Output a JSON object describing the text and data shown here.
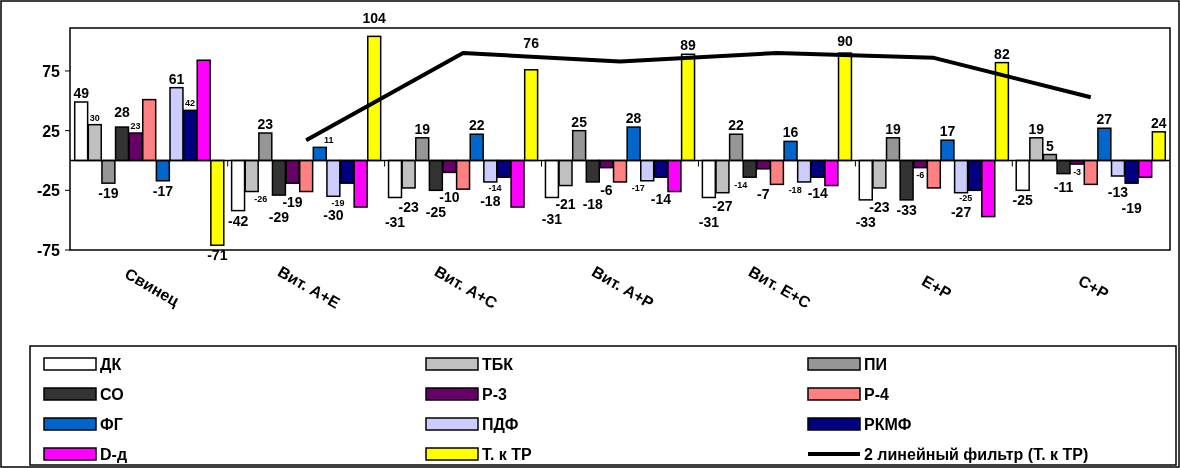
{
  "chart_data": {
    "type": "bar",
    "categories": [
      "Свинец",
      "Вит. А+Е",
      "Вит. А+С",
      "Вит. А+Р",
      "Вит. Е+С",
      "Е+Р",
      "С+Р"
    ],
    "ylim": [
      -75,
      111
    ],
    "yticks": [
      -75,
      -25,
      25,
      75
    ],
    "grid": false,
    "legend": "bottom",
    "series": [
      {
        "name": "ДК",
        "color": "#ffffff",
        "values": [
          49,
          -42,
          -31,
          -31,
          -31,
          -33,
          -25
        ],
        "value_labels": [
          "49",
          "-42",
          "-31",
          "-31",
          "-31",
          "-33",
          "-25"
        ]
      },
      {
        "name": "ТБК",
        "color": "#c0c0c0",
        "values": [
          30,
          -26,
          -23,
          -21,
          -27,
          -23,
          19
        ],
        "value_labels": [
          "30",
          "-26",
          "-23",
          "-21",
          "-27",
          "-23",
          "19"
        ]
      },
      {
        "name": "ПИ",
        "color": "#969696",
        "values": [
          -19,
          23,
          19,
          25,
          22,
          19,
          5
        ],
        "value_labels": [
          "-19",
          "23",
          "19",
          "25",
          "22",
          "19",
          "5"
        ]
      },
      {
        "name": "СО",
        "color": "#333333",
        "values": [
          28,
          -29,
          -25,
          -18,
          -14,
          -33,
          -11
        ],
        "value_labels": [
          "28",
          "-29",
          "-25",
          "-18",
          "-14",
          "-33",
          "-11"
        ]
      },
      {
        "name": "Р-3",
        "color": "#660066",
        "values": [
          23,
          -19,
          -10,
          -6,
          -7,
          -6,
          -3
        ],
        "value_labels": [
          "23",
          "-19",
          "-10",
          "-6",
          "-7",
          "-6",
          "-3"
        ]
      },
      {
        "name": "Р-4",
        "color": "#ff8080",
        "values": [
          51,
          -26,
          -24,
          -18,
          -20,
          -23,
          -20
        ],
        "value_labels": [
          null,
          null,
          null,
          null,
          null,
          null,
          null
        ]
      },
      {
        "name": "ФГ",
        "color": "#0066cc",
        "values": [
          -17,
          11,
          22,
          28,
          16,
          17,
          27
        ],
        "value_labels": [
          "-17",
          "11",
          "22",
          "28",
          "16",
          "17",
          "27"
        ]
      },
      {
        "name": "ПДФ",
        "color": "#ccccff",
        "values": [
          61,
          -30,
          -18,
          -17,
          -18,
          -27,
          -13
        ],
        "value_labels": [
          "61",
          "-30",
          "-18",
          "-17",
          "-18",
          "-27",
          "-13"
        ]
      },
      {
        "name": "РКМФ",
        "color": "#000080",
        "values": [
          42,
          -19,
          -14,
          -14,
          -14,
          -25,
          -19
        ],
        "value_labels": [
          "42",
          "-19",
          "-14",
          "-14",
          "-14",
          "-25",
          "-19"
        ]
      },
      {
        "name": "D-д",
        "color": "#ff00ff",
        "values": [
          84,
          -39,
          -39,
          -26,
          -21,
          -47,
          -14
        ],
        "value_labels": [
          null,
          null,
          null,
          null,
          null,
          null,
          null
        ]
      },
      {
        "name": "Т. к ТР",
        "color": "#ffff00",
        "values": [
          -71,
          104,
          76,
          89,
          90,
          82,
          24
        ],
        "value_labels": [
          "-71",
          "104",
          "76",
          "89",
          "90",
          "82",
          "24"
        ]
      },
      {
        "name": "2 линейный фильтр (Т. к ТР)",
        "type": "line",
        "color": "#000000",
        "values": [
          null,
          17,
          90,
          83,
          90,
          86,
          53
        ]
      }
    ]
  }
}
